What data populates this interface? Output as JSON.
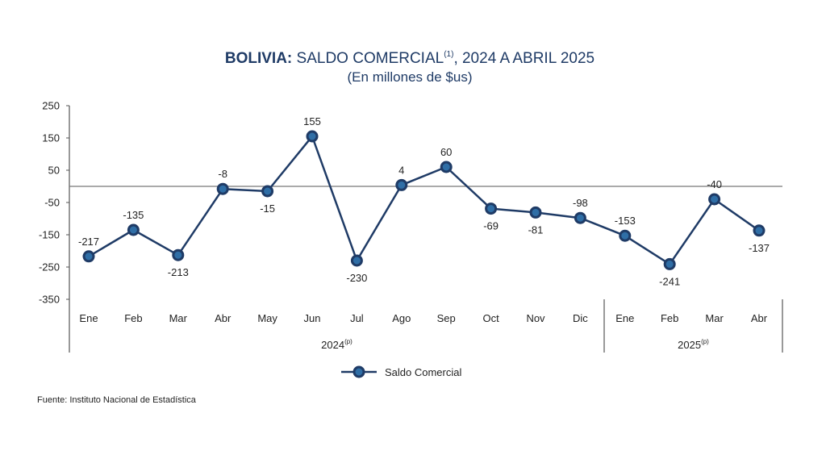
{
  "title_bold": "BOLIVIA:",
  "title_rest": " SALDO COMERCIAL",
  "title_note": "(1)",
  "title_tail": ", 2024 A ABRIL 2025",
  "subtitle": "(En millones de $us)",
  "source": "Fuente: Instituto Nacional de Estadística",
  "legend_label": "Saldo Comercial",
  "colors": {
    "line": "#1f3b66",
    "marker_fill": "#2f6ea6",
    "title": "#1f3b66",
    "axis": "#555555"
  },
  "chart_data": {
    "type": "line",
    "categories": [
      "Ene",
      "Feb",
      "Mar",
      "Abr",
      "May",
      "Jun",
      "Jul",
      "Ago",
      "Sep",
      "Oct",
      "Nov",
      "Dic",
      "Ene",
      "Feb",
      "Mar",
      "Abr"
    ],
    "groups": [
      {
        "label": "2024",
        "note": "(p)",
        "start": 0,
        "end": 11
      },
      {
        "label": "2025",
        "note": "(p)",
        "start": 12,
        "end": 15
      }
    ],
    "series": [
      {
        "name": "Saldo Comercial",
        "values": [
          -217,
          -135,
          -213,
          -8,
          -15,
          155,
          -230,
          4,
          60,
          -69,
          -81,
          -98,
          -153,
          -241,
          -40,
          -137
        ],
        "label_pos": [
          "above",
          "above",
          "below",
          "above",
          "below",
          "above",
          "below",
          "above",
          "above",
          "below",
          "below",
          "above",
          "above",
          "below",
          "above",
          "below"
        ]
      }
    ],
    "yticks": [
      250,
      150,
      50,
      -50,
      -150,
      -250,
      -350
    ],
    "ylim": [
      -350,
      250
    ],
    "zero_line": true,
    "legend": "bottom-center"
  }
}
